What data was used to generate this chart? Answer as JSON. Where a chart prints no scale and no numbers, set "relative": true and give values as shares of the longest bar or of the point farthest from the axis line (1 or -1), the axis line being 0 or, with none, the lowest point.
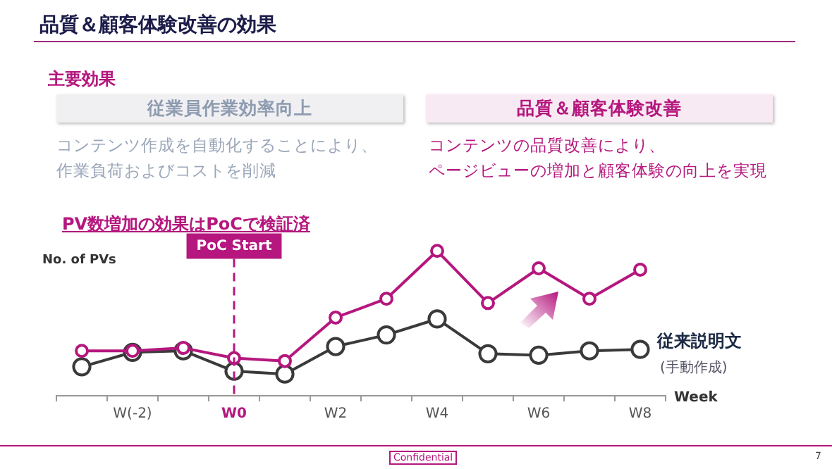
{
  "chart_data": {
    "type": "line",
    "title": "品質＆顧客体験改善の効果",
    "annotations": [
      "主要効果",
      "従業員作業効率向上",
      "コンテンツ作成を自動化することにより、",
      "作業負荷およびコストを削減",
      "品質＆顧客体験改善",
      "コンテンツの品質改善により、",
      "ページビューの増加と顧客体験の向上を実現",
      "PV数増加の効果はPoCで検証済",
      "(手動作成)",
      "Confidential",
      "7"
    ],
    "ylabel": "No. of PVs",
    "xlabel": "Week",
    "relative": true,
    "categories": [
      null,
      "W(-2)",
      null,
      "W0",
      null,
      "W2",
      null,
      "W4",
      null,
      "W6",
      null,
      "W8"
    ],
    "series": [
      {
        "color": "#b5177e",
        "values": [
          0.31,
          0.31,
          0.33,
          0.26,
          0.24,
          0.54,
          0.67,
          1,
          0.64,
          0.88,
          0.67,
          0.87
        ]
      },
      {
        "name": "従来説明文",
        "color": "#3a3a3a",
        "values": [
          0.2,
          0.3,
          0.31,
          0.17,
          0.15,
          0.34,
          0.42,
          0.53,
          0.29,
          0.28,
          0.31,
          0.32
        ]
      }
    ],
    "ref_lines": [
      {
        "axis": "x",
        "value": "W0",
        "label": "PoC Start",
        "color": "#b5177e",
        "line_style": "dashed"
      }
    ],
    "marker": "circle",
    "line_style": "solid",
    "grid": false,
    "legend": false
  }
}
